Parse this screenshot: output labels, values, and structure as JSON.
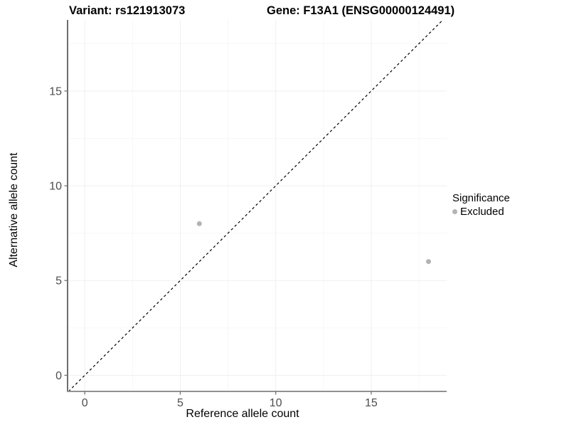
{
  "header": {
    "title_left": "Variant: rs121913073",
    "title_right": "Gene: F13A1 (ENSG00000124491)"
  },
  "axes": {
    "x_title": "Reference allele count",
    "y_title": "Alternative allele count"
  },
  "legend": {
    "title": "Significance",
    "items": [
      {
        "label": "Excluded",
        "color": "#b3b3b3"
      }
    ]
  },
  "chart_data": {
    "type": "scatter",
    "title": "Variant: rs121913073 — Gene: F13A1 (ENSG00000124491)",
    "xlabel": "Reference allele count",
    "ylabel": "Alternative allele count",
    "xlim": [
      -0.9,
      18.95
    ],
    "ylim": [
      -0.85,
      18.75
    ],
    "x_ticks": [
      0,
      5,
      10,
      15
    ],
    "y_ticks": [
      0,
      5,
      10,
      15
    ],
    "x_minor_ticks": [
      2.5,
      7.5,
      12.5,
      17.5
    ],
    "y_minor_ticks": [
      2.5,
      7.5,
      12.5,
      17.5
    ],
    "grid": "on",
    "legend_position": "right",
    "reference_line": {
      "type": "identity",
      "style": "dashed",
      "color": "#000000"
    },
    "series": [
      {
        "name": "Excluded",
        "marker": "circle",
        "color": "#b3b3b3",
        "points": [
          {
            "x": 6,
            "y": 8
          },
          {
            "x": 18,
            "y": 6
          }
        ]
      }
    ]
  },
  "colors": {
    "background": "#ffffff",
    "grid_major": "#efefef",
    "grid_minor": "#f7f7f7",
    "axis_line_left": "#3f3f3f",
    "axis_line_bottom": "#919191",
    "tick_mark": "#737373",
    "tick_label": "#4d4d4d"
  }
}
